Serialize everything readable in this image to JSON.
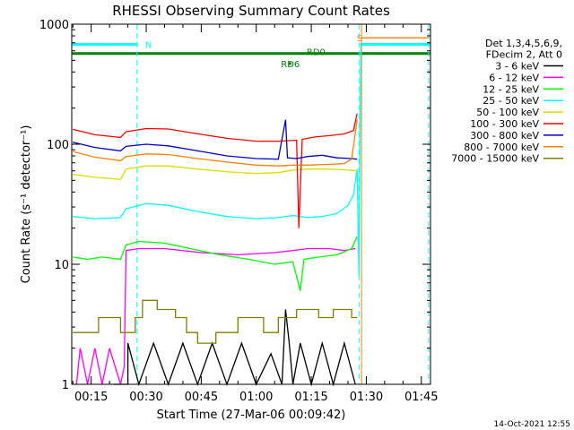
{
  "chart_data": {
    "type": "line",
    "title": "RHESSI Observing Summary Count Rates",
    "xlabel": "Start Time (27-Mar-06 00:09:42)",
    "ylabel": "Count Rate (s⁻¹ detector⁻¹)",
    "yscale": "log",
    "ylim": [
      1,
      1000
    ],
    "xlim_minutes": [
      9.7,
      107.5
    ],
    "x_ticks": [
      {
        "minutes": 15,
        "label": "00:15"
      },
      {
        "minutes": 30,
        "label": "00:30"
      },
      {
        "minutes": 45,
        "label": "00:45"
      },
      {
        "minutes": 60,
        "label": "01:00"
      },
      {
        "minutes": 75,
        "label": "01:15"
      },
      {
        "minutes": 90,
        "label": "01:30"
      },
      {
        "minutes": 105,
        "label": "01:45"
      }
    ],
    "y_ticks": [
      {
        "value": 1,
        "label": "1"
      },
      {
        "value": 10,
        "label": "10"
      },
      {
        "value": 100,
        "label": "100"
      },
      {
        "value": 1000,
        "label": "1000"
      }
    ],
    "legend_header": [
      "Det 1,3,4,5,6,9,",
      "FDecim 2, Att 0"
    ],
    "series": [
      {
        "name": "3 - 6 keV",
        "color": "#000000",
        "segments": [
          [
            [
              21,
              1.0
            ],
            [
              25,
              1.0
            ],
            [
              25,
              2.2
            ],
            [
              28,
              1.0
            ],
            [
              32,
              2.2
            ],
            [
              36,
              1.0
            ],
            [
              40,
              2.2
            ],
            [
              44,
              1.0
            ],
            [
              48,
              2.2
            ],
            [
              52,
              1.0
            ],
            [
              56,
              2.2
            ],
            [
              60,
              1.0
            ],
            [
              64,
              1.8
            ],
            [
              67,
              1.0
            ],
            [
              68,
              4.2
            ],
            [
              69,
              2.2
            ],
            [
              70,
              1.0
            ],
            [
              72,
              2.2
            ],
            [
              75,
              1.0
            ],
            [
              78,
              2.2
            ],
            [
              81,
              1.0
            ],
            [
              84,
              2.2
            ],
            [
              87,
              1.0
            ]
          ]
        ]
      },
      {
        "name": "6 - 12 keV",
        "color": "#ff00ff",
        "segments": [
          [
            [
              11,
              1.0
            ],
            [
              12,
              2.0
            ],
            [
              14,
              1.0
            ],
            [
              16,
              2.0
            ],
            [
              18,
              1.0
            ],
            [
              20,
              2.0
            ],
            [
              23,
              1.0
            ],
            [
              24,
              1.4
            ],
            [
              24.5,
              13.0
            ],
            [
              28,
              13.5
            ],
            [
              35,
              13.5
            ],
            [
              45,
              12.5
            ],
            [
              55,
              12.0
            ],
            [
              65,
              12.5
            ],
            [
              70,
              13.0
            ],
            [
              74,
              13.5
            ],
            [
              80,
              13.5
            ],
            [
              84,
              13.0
            ],
            [
              87,
              13.5
            ]
          ]
        ]
      },
      {
        "name": "12 - 25 keV",
        "color": "#00ff00",
        "segments": [
          [
            [
              10,
              11.5
            ],
            [
              14,
              11.0
            ],
            [
              18,
              11.5
            ],
            [
              23,
              11.0
            ],
            [
              24.5,
              14.5
            ],
            [
              28,
              15.5
            ],
            [
              35,
              15.0
            ],
            [
              42,
              13.5
            ],
            [
              50,
              12.0
            ],
            [
              58,
              11.0
            ],
            [
              65,
              10.0
            ],
            [
              70,
              10.5
            ],
            [
              72,
              6.0
            ],
            [
              73,
              11.0
            ],
            [
              77,
              11.5
            ],
            [
              82,
              12.0
            ],
            [
              86,
              13.5
            ],
            [
              87.5,
              17.0
            ]
          ]
        ]
      },
      {
        "name": "25 - 50 keV",
        "color": "#00ffff",
        "segments": [
          [
            [
              10,
              25.0
            ],
            [
              16,
              24.0
            ],
            [
              23,
              24.5
            ],
            [
              24.5,
              29.0
            ],
            [
              30,
              32.0
            ],
            [
              36,
              31.0
            ],
            [
              44,
              27.5
            ],
            [
              52,
              25.0
            ],
            [
              60,
              24.0
            ],
            [
              66,
              24.5
            ],
            [
              70,
              25.5
            ],
            [
              74,
              24.5
            ],
            [
              78,
              25.0
            ],
            [
              82,
              26.5
            ],
            [
              85,
              31.0
            ],
            [
              86.5,
              38.0
            ],
            [
              87.5,
              62.0
            ],
            [
              88,
              8.0
            ],
            [
              88.5,
              700.0
            ]
          ]
        ]
      },
      {
        "name": "50 - 100 keV",
        "color": "#dddd00",
        "segments": [
          [
            [
              10,
              56.0
            ],
            [
              16,
              53.0
            ],
            [
              23,
              51.0
            ],
            [
              24.5,
              62.0
            ],
            [
              30,
              66.0
            ],
            [
              36,
              66.0
            ],
            [
              44,
              62.0
            ],
            [
              52,
              59.0
            ],
            [
              60,
              57.0
            ],
            [
              66,
              58.0
            ],
            [
              70,
              61.0
            ],
            [
              74,
              62.0
            ],
            [
              80,
              62.0
            ],
            [
              85,
              61.0
            ],
            [
              87.5,
              60.0
            ]
          ]
        ]
      },
      {
        "name": "100 - 300 keV",
        "color": "#ff0000",
        "segments": [
          [
            [
              10,
              133.0
            ],
            [
              16,
              120.0
            ],
            [
              23,
              114.0
            ],
            [
              24.5,
              127.0
            ],
            [
              30,
              135.0
            ],
            [
              36,
              134.0
            ],
            [
              44,
              122.0
            ],
            [
              52,
              112.0
            ],
            [
              60,
              106.0
            ],
            [
              66,
              106.0
            ],
            [
              71,
              108.0
            ],
            [
              71.6,
              20.0
            ],
            [
              72.5,
              110.0
            ],
            [
              76,
              115.0
            ],
            [
              80,
              118.0
            ],
            [
              84,
              122.0
            ],
            [
              86.5,
              130.0
            ],
            [
              87.5,
              180.0
            ]
          ]
        ]
      },
      {
        "name": "300 - 800 keV",
        "color": "#0000cc",
        "segments": [
          [
            [
              10,
              104.0
            ],
            [
              16,
              94.0
            ],
            [
              23,
              88.0
            ],
            [
              24.5,
              96.0
            ],
            [
              30,
              100.0
            ],
            [
              36,
              97.0
            ],
            [
              44,
              88.0
            ],
            [
              52,
              80.0
            ],
            [
              60,
              76.0
            ],
            [
              66,
              75.0
            ],
            [
              68,
              160.0
            ],
            [
              68.5,
              77.0
            ],
            [
              71,
              76.0
            ],
            [
              74,
              79.0
            ],
            [
              78,
              81.0
            ],
            [
              82,
              77.0
            ],
            [
              86,
              76.0
            ],
            [
              87.5,
              75.0
            ]
          ]
        ]
      },
      {
        "name": "800 - 7000 keV",
        "color": "#ff8000",
        "segments": [
          [
            [
              10,
              87.0
            ],
            [
              16,
              78.0
            ],
            [
              23,
              73.0
            ],
            [
              24.5,
              79.0
            ],
            [
              30,
              83.0
            ],
            [
              36,
              82.0
            ],
            [
              44,
              76.0
            ],
            [
              52,
              71.0
            ],
            [
              60,
              67.0
            ],
            [
              66,
              66.0
            ],
            [
              70,
              67.0
            ],
            [
              74,
              67.0
            ],
            [
              80,
              68.0
            ],
            [
              84,
              69.0
            ],
            [
              86,
              75.0
            ],
            [
              87.5,
              160.0
            ]
          ],
          [
            [
              88.5,
              770.0
            ],
            [
              107,
              770.0
            ]
          ]
        ]
      },
      {
        "name": "7000 - 15000 keV",
        "color": "#808000",
        "segments": [
          [
            [
              10,
              2.7
            ],
            [
              17,
              2.7
            ],
            [
              17,
              3.6
            ],
            [
              23,
              3.6
            ],
            [
              23,
              2.7
            ],
            [
              27,
              2.7
            ],
            [
              27,
              3.6
            ],
            [
              29,
              3.6
            ],
            [
              29,
              5.0
            ],
            [
              33,
              5.0
            ],
            [
              33,
              4.2
            ],
            [
              38,
              4.2
            ],
            [
              38,
              3.6
            ],
            [
              41,
              3.6
            ],
            [
              41,
              2.7
            ],
            [
              44,
              2.7
            ],
            [
              44,
              2.2
            ],
            [
              49,
              2.2
            ],
            [
              49,
              2.7
            ],
            [
              55,
              2.7
            ],
            [
              55,
              3.6
            ],
            [
              62,
              3.6
            ],
            [
              62,
              2.7
            ],
            [
              66,
              2.7
            ],
            [
              66,
              3.6
            ],
            [
              71,
              3.6
            ],
            [
              71,
              4.2
            ],
            [
              77,
              4.2
            ],
            [
              77,
              3.6
            ],
            [
              81,
              3.6
            ],
            [
              81,
              4.2
            ],
            [
              86,
              4.2
            ],
            [
              86,
              3.6
            ],
            [
              87.5,
              3.6
            ]
          ]
        ]
      }
    ],
    "attenuator_bars": [
      {
        "color": "#00ffff",
        "from_min": 9.7,
        "to_min": 27.5,
        "value": 680
      },
      {
        "color": "#00ffff",
        "from_min": 88.5,
        "to_min": 107.5,
        "value": 680
      },
      {
        "color": "#008000",
        "from_min": 9.7,
        "to_min": 107.5,
        "value": 570
      }
    ],
    "annotations": [
      {
        "text": "N",
        "color": "#00ffff",
        "minutes": 29.0,
        "value": 680
      },
      {
        "text": "S",
        "color": "#ff8000",
        "minutes": 86.7,
        "value": 770
      },
      {
        "text": "RD0",
        "color": "#008000",
        "minutes": 73.0,
        "value": 590
      },
      {
        "text": "RD6",
        "color": "#008000",
        "minutes": 66.0,
        "value": 470
      }
    ],
    "vlines": [
      {
        "minutes": 27.5,
        "color": "#00ffff",
        "dashed": true
      },
      {
        "minutes": 88.0,
        "color": "#00ffff",
        "dashed": true
      },
      {
        "minutes": 88.7,
        "color": "#ff8000",
        "dashed": false
      },
      {
        "minutes": 107.0,
        "color": "#00ffff",
        "dashed": true
      }
    ],
    "timestamp": "14-Oct-2021 12:55"
  }
}
